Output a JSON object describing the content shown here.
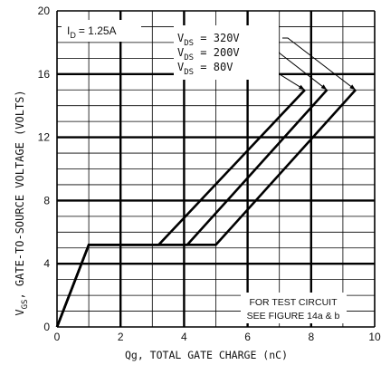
{
  "chart_data": {
    "type": "line",
    "xlabel": "Qg, TOTAL GATE CHARGE (nC)",
    "ylabel_sub": "GS",
    "ylabel_rest": ", GATE-TO-SOURCE VOLTAGE (VOLTS)",
    "xlim": [
      0,
      10
    ],
    "ylim": [
      0,
      20
    ],
    "x_ticks": [
      0,
      2,
      4,
      6,
      8,
      10
    ],
    "y_ticks": [
      0,
      4,
      8,
      12,
      16,
      20
    ],
    "grid": true,
    "id_label": {
      "sub": "D",
      "value": "= 1.25A"
    },
    "series": [
      {
        "name": "320V",
        "x": [
          0,
          1.0,
          5.0,
          9.4
        ],
        "y": [
          0,
          5.2,
          5.2,
          15.0
        ]
      },
      {
        "name": "200V",
        "x": [
          0,
          1.0,
          4.1,
          8.5
        ],
        "y": [
          0,
          5.2,
          5.2,
          15.0
        ]
      },
      {
        "name": "80V",
        "x": [
          0,
          1.0,
          3.2,
          7.8
        ],
        "y": [
          0,
          5.2,
          5.2,
          15.0
        ]
      }
    ],
    "note": [
      "FOR TEST CIRCUIT",
      "SEE FIGURE 14a & b"
    ]
  }
}
